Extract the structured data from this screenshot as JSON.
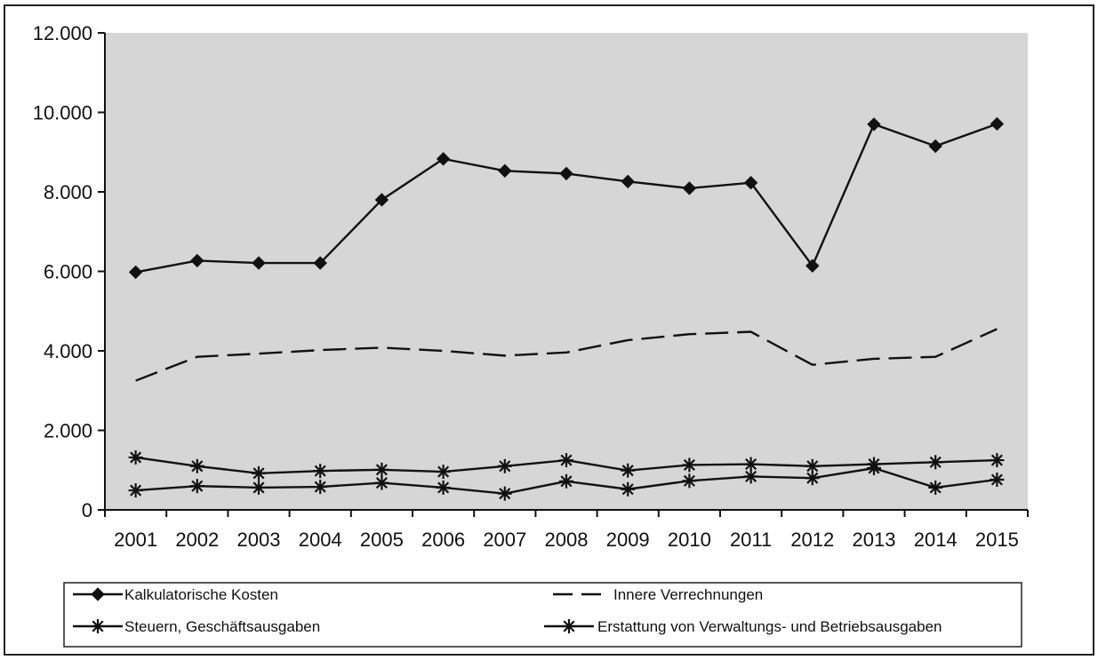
{
  "chart_data": {
    "type": "line",
    "title": "",
    "xlabel": "",
    "ylabel": "",
    "categories": [
      "2001",
      "2002",
      "2003",
      "2004",
      "2005",
      "2006",
      "2007",
      "2008",
      "2009",
      "2010",
      "2011",
      "2012",
      "2013",
      "2014",
      "2015"
    ],
    "ylim": [
      0,
      12000
    ],
    "yticks": [
      0,
      2000,
      4000,
      6000,
      8000,
      10000,
      12000
    ],
    "ytick_labels": [
      "0",
      "2.000",
      "4.000",
      "6.000",
      "8.000",
      "10.000",
      "12.000"
    ],
    "grid": false,
    "legend_position": "bottom",
    "series": [
      {
        "name": "Kalkulatorische Kosten",
        "marker": "diamond",
        "line": "solid",
        "values": [
          5980,
          6270,
          6210,
          6210,
          7800,
          8830,
          8530,
          8460,
          8260,
          8090,
          8230,
          6140,
          9700,
          9150,
          9710
        ]
      },
      {
        "name": "Innere Verrechnungen",
        "marker": "none",
        "line": "dashed",
        "values": [
          3250,
          3850,
          3930,
          4020,
          4080,
          4000,
          3880,
          3960,
          4270,
          4420,
          4480,
          3650,
          3800,
          3850,
          4550
        ]
      },
      {
        "name": "Steuern, Geschäftsausgaben",
        "marker": "asterisk",
        "line": "solid",
        "values": [
          1320,
          1100,
          920,
          980,
          1010,
          960,
          1100,
          1250,
          990,
          1130,
          1150,
          1100,
          1150,
          1200,
          1250
        ]
      },
      {
        "name": "Erstattung von Verwaltungs- und Betriebsausgaben",
        "marker": "asterisk",
        "line": "solid",
        "values": [
          490,
          600,
          560,
          580,
          680,
          560,
          410,
          720,
          520,
          730,
          840,
          800,
          1050,
          560,
          760
        ]
      }
    ],
    "colors": {
      "background": "#ffffff",
      "plot_area": "#d6d6d6",
      "series_stroke": "#111111"
    }
  }
}
